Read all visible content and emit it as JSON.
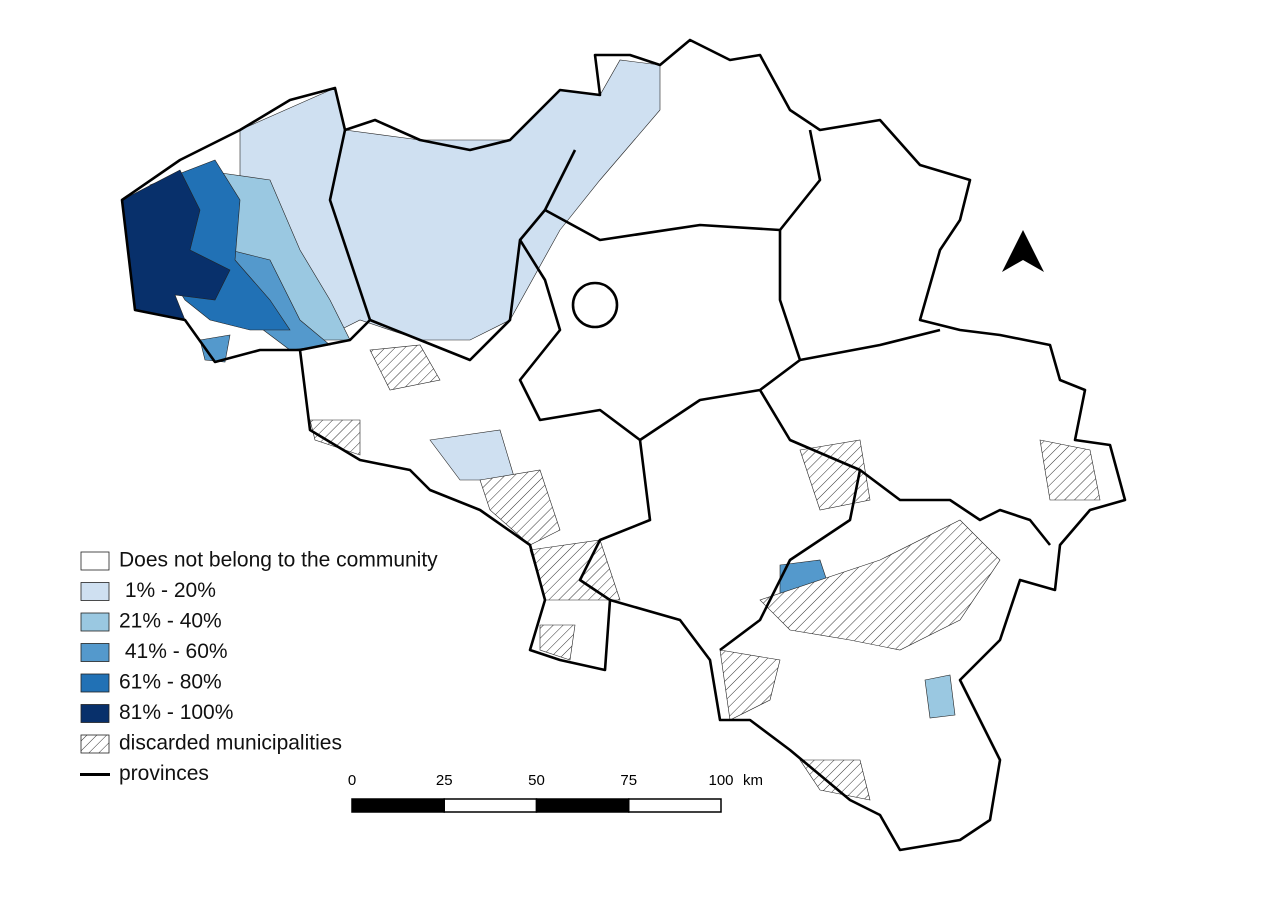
{
  "legend": {
    "items": [
      {
        "label": "Does not belong to the community",
        "color": "#ffffff"
      },
      {
        "label": " 1% - 20%",
        "color": "#cfe0f1"
      },
      {
        "label": "21% - 40%",
        "color": "#9ac8e1"
      },
      {
        "label": " 41% - 60%",
        "color": "#5499cc"
      },
      {
        "label": "61% - 80%",
        "color": "#2171b5"
      },
      {
        "label": "81% - 100%",
        "color": "#08306b"
      },
      {
        "label": "discarded municipalities",
        "pattern": "hatch"
      },
      {
        "label": "provinces",
        "line": true
      }
    ]
  },
  "scale_bar": {
    "ticks": [
      0,
      25,
      50,
      75,
      100
    ],
    "unit": "km"
  }
}
